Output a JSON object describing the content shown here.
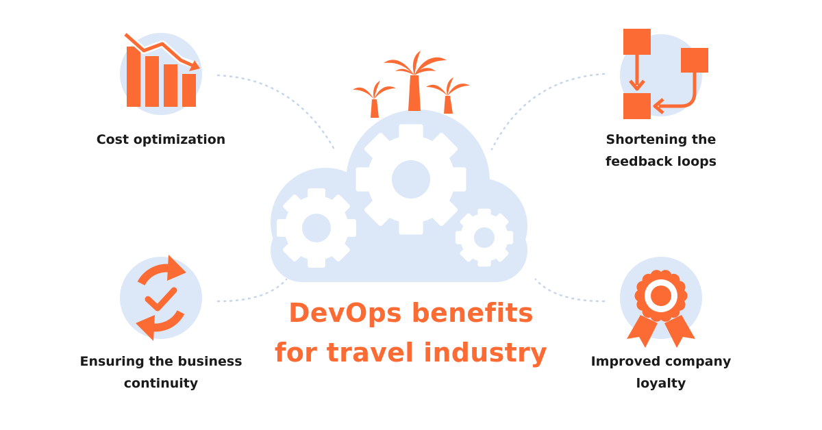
{
  "colors": {
    "accent": "#fb6b33",
    "circle": "#dce8f8",
    "cloud": "#dce8f8",
    "gear": "#ffffff",
    "text": "#1a1a1a"
  },
  "title": {
    "line1": "DevOps benefits",
    "line2": "for travel industry"
  },
  "benefits": {
    "cost": {
      "icon": "declining-bar-chart-icon",
      "line1": "Cost optimization"
    },
    "feedback": {
      "icon": "flowchart-loop-icon",
      "line1": "Shortening the",
      "line2": "feedback loops"
    },
    "continuity": {
      "icon": "refresh-check-icon",
      "line1": "Ensuring the business",
      "line2": "continuity"
    },
    "loyalty": {
      "icon": "award-badge-icon",
      "line1": "Improved company",
      "line2": "loyalty"
    }
  },
  "center": {
    "icons": [
      "cloud-icon",
      "gear-icon",
      "palm-tree-icon"
    ]
  }
}
